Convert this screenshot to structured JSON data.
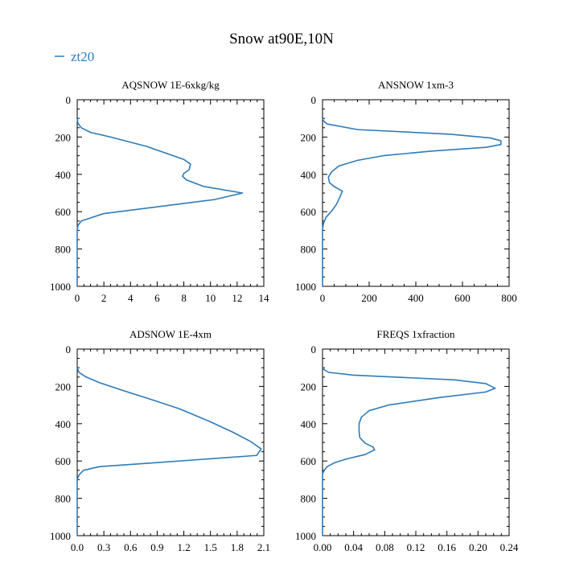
{
  "title": "Snow at90E,10N",
  "legend": {
    "label": "zt20",
    "color": "#2e7bb8"
  },
  "colors": {
    "line": "#2e7bb8",
    "axis": "#000000"
  },
  "chart_data": [
    {
      "type": "line",
      "title": "AQSNOW  1E-6xkg/kg",
      "xlim": [
        0,
        14
      ],
      "xticks": [
        "0",
        "2",
        "4",
        "6",
        "8",
        "10",
        "12",
        "14"
      ],
      "ylim": [
        0,
        1000
      ],
      "yticks": [
        "0",
        "200",
        "400",
        "600",
        "800",
        "1000"
      ],
      "series": [
        {
          "name": "zt20",
          "x": [
            0,
            0.05,
            0.3,
            1.0,
            2.5,
            5.2,
            8.0,
            8.5,
            8.4,
            8.0,
            7.9,
            8.2,
            9.5,
            12.4,
            10.3,
            2.0,
            0.3,
            0.05,
            0,
            0
          ],
          "y": [
            100,
            125,
            150,
            175,
            200,
            250,
            320,
            345,
            375,
            395,
            410,
            430,
            465,
            500,
            535,
            610,
            650,
            675,
            700,
            1000
          ]
        }
      ]
    },
    {
      "type": "line",
      "title": "ANSNOW  1xm-3",
      "xlim": [
        0,
        800
      ],
      "xticks": [
        "0",
        "200",
        "400",
        "600",
        "800"
      ],
      "ylim": [
        0,
        1000
      ],
      "yticks": [
        "0",
        "200",
        "400",
        "600",
        "800",
        "1000"
      ],
      "series": [
        {
          "name": "zt20",
          "x": [
            0,
            5,
            20,
            150,
            550,
            720,
            765,
            765,
            700,
            470,
            260,
            150,
            70,
            40,
            25,
            30,
            50,
            85,
            75,
            60,
            40,
            15,
            5,
            0,
            0
          ],
          "y": [
            100,
            115,
            130,
            160,
            185,
            205,
            220,
            240,
            255,
            275,
            300,
            325,
            355,
            385,
            415,
            445,
            465,
            490,
            520,
            560,
            595,
            630,
            660,
            690,
            1000
          ]
        }
      ]
    },
    {
      "type": "line",
      "title": "ADSNOW  1E-4xm",
      "xlim": [
        0,
        2.1
      ],
      "xticks": [
        "0.0",
        "0.3",
        "0.6",
        "0.9",
        "1.2",
        "1.5",
        "1.8",
        "2.1"
      ],
      "ylim": [
        0,
        1000
      ],
      "yticks": [
        "0",
        "200",
        "400",
        "600",
        "800",
        "1000"
      ],
      "series": [
        {
          "name": "zt20",
          "x": [
            0,
            0.02,
            0.1,
            0.25,
            0.5,
            0.8,
            1.15,
            1.5,
            1.75,
            1.95,
            2.07,
            2.02,
            0.8,
            0.25,
            0.07,
            0.02,
            0,
            0
          ],
          "y": [
            100,
            125,
            150,
            180,
            220,
            265,
            320,
            390,
            445,
            495,
            535,
            570,
            612,
            630,
            650,
            675,
            700,
            1000
          ]
        }
      ]
    },
    {
      "type": "line",
      "title": "FREQS  1xfraction",
      "xlim": [
        0,
        0.24
      ],
      "xticks": [
        "0.00",
        "0.04",
        "0.08",
        "0.12",
        "0.16",
        "0.20",
        "0.24"
      ],
      "ylim": [
        0,
        1000
      ],
      "yticks": [
        "0",
        "200",
        "400",
        "600",
        "800",
        "1000"
      ],
      "series": [
        {
          "name": "zt20",
          "x": [
            0,
            0.002,
            0.008,
            0.04,
            0.17,
            0.21,
            0.222,
            0.21,
            0.15,
            0.085,
            0.06,
            0.05,
            0.047,
            0.047,
            0.048,
            0.055,
            0.065,
            0.067,
            0.055,
            0.03,
            0.015,
            0.006,
            0.002,
            0,
            0
          ],
          "y": [
            100,
            110,
            125,
            140,
            165,
            185,
            210,
            230,
            260,
            300,
            330,
            365,
            400,
            440,
            475,
            505,
            525,
            540,
            565,
            590,
            610,
            630,
            650,
            670,
            1000
          ]
        }
      ]
    }
  ]
}
